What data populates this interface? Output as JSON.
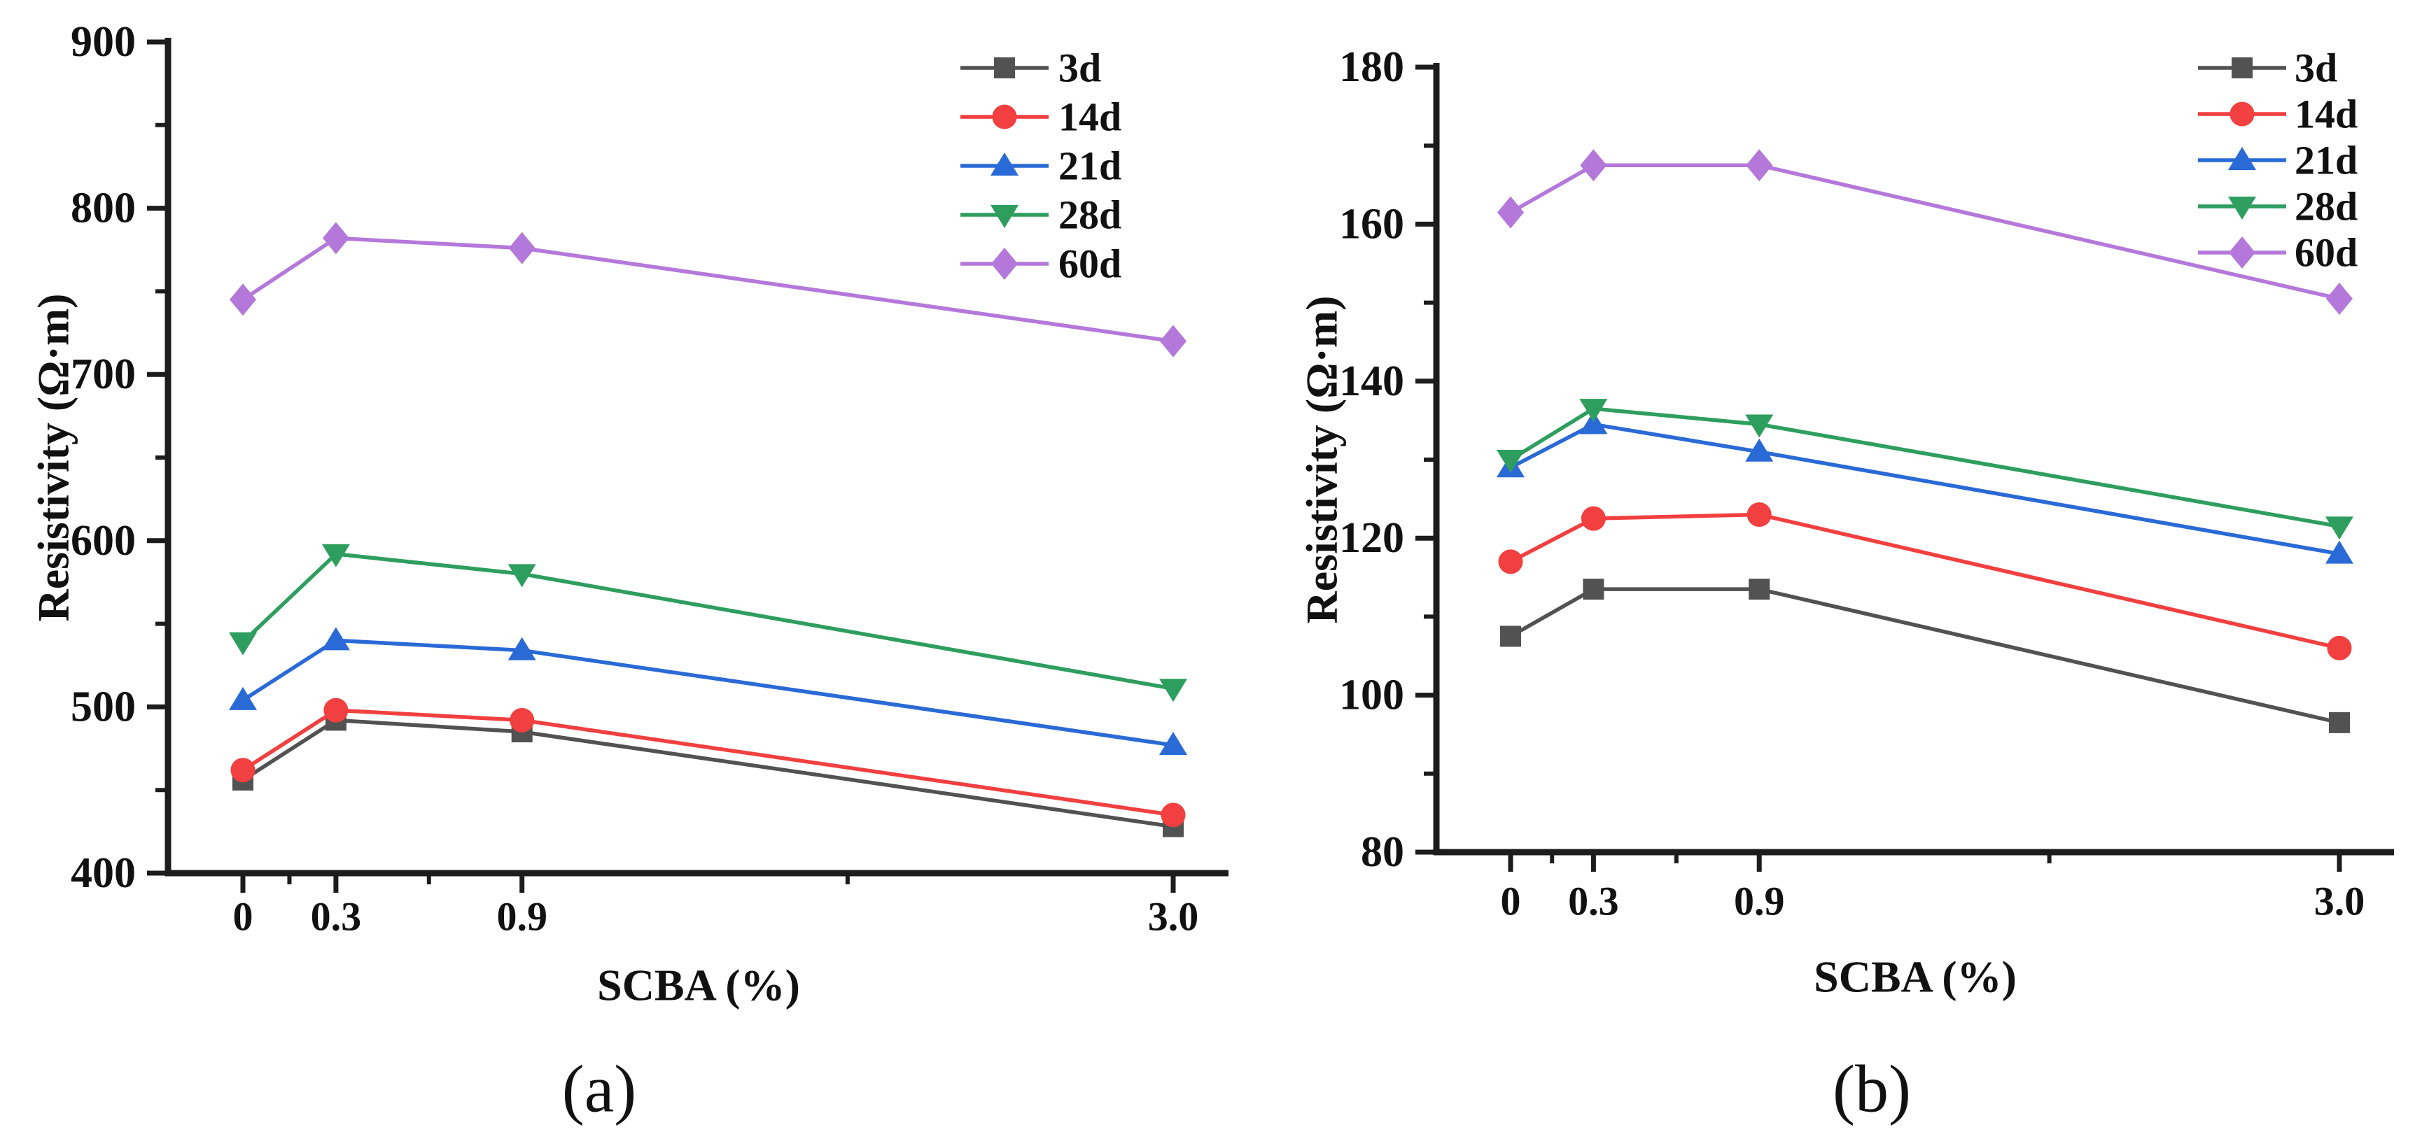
{
  "figure": {
    "background": "#FFFFFF",
    "text_color": "#111111",
    "axis_color": "#1c1c1c",
    "captions": {
      "a": "(a)",
      "b": "(b)"
    }
  },
  "chart_data": [
    {
      "id": "a",
      "type": "line",
      "title": "",
      "xlabel": "SCBA (%)",
      "ylabel": "Resistivity (Ω·m)",
      "x": [
        0,
        0.3,
        0.9,
        3.0
      ],
      "x_tick_labels": [
        "0",
        "0.3",
        "0.9",
        "3.0"
      ],
      "x_minor_ticks": [
        0.15,
        0.6,
        1.95
      ],
      "ylim": [
        400,
        900
      ],
      "y_major_ticks": [
        400,
        500,
        600,
        700,
        800,
        900
      ],
      "y_minor_ticks": [
        450,
        550,
        650,
        750,
        850
      ],
      "grid": false,
      "legend_position": "top-right",
      "legend_labels": [
        "3d",
        "14d",
        "21d",
        "28d",
        "60d"
      ],
      "series": [
        {
          "name": "3d",
          "marker": "square",
          "color": "#525252",
          "values": [
            456,
            492,
            485,
            428
          ]
        },
        {
          "name": "14d",
          "marker": "circle",
          "color": "#F23F3F",
          "values": [
            462,
            498,
            492,
            435
          ]
        },
        {
          "name": "21d",
          "marker": "triangle-up",
          "color": "#2A6AD6",
          "values": [
            504,
            540,
            534,
            477
          ]
        },
        {
          "name": "28d",
          "marker": "triangle-down",
          "color": "#2E9E5E",
          "values": [
            539,
            592,
            580,
            511
          ]
        },
        {
          "name": "60d",
          "marker": "diamond",
          "color": "#B478DA",
          "values": [
            745,
            782,
            776,
            720
          ]
        }
      ]
    },
    {
      "id": "b",
      "type": "line",
      "title": "",
      "xlabel": "SCBA (%)",
      "ylabel": "Resistivity (Ω·m)",
      "x": [
        0,
        0.3,
        0.9,
        3.0
      ],
      "x_tick_labels": [
        "0",
        "0.3",
        "0.9",
        "3.0"
      ],
      "x_minor_ticks": [
        0.15,
        0.6,
        1.95
      ],
      "ylim": [
        80,
        180
      ],
      "y_major_ticks": [
        80,
        100,
        120,
        140,
        160,
        180
      ],
      "y_minor_ticks": [
        90,
        110,
        130,
        150,
        170
      ],
      "grid": false,
      "legend_position": "top-right",
      "legend_labels": [
        "3d",
        "14d",
        "21d",
        "28d",
        "60d"
      ],
      "series": [
        {
          "name": "3d",
          "marker": "square",
          "color": "#525252",
          "values": [
            107.5,
            113.5,
            113.5,
            96.5
          ]
        },
        {
          "name": "14d",
          "marker": "circle",
          "color": "#F23F3F",
          "values": [
            117,
            122.5,
            123,
            106
          ]
        },
        {
          "name": "21d",
          "marker": "triangle-up",
          "color": "#2A6AD6",
          "values": [
            129,
            134.5,
            131,
            118
          ]
        },
        {
          "name": "28d",
          "marker": "triangle-down",
          "color": "#2E9E5E",
          "values": [
            130,
            136.5,
            134.5,
            121.5
          ]
        },
        {
          "name": "60d",
          "marker": "diamond",
          "color": "#B478DA",
          "values": [
            161.5,
            167.5,
            167.5,
            150.5
          ]
        }
      ]
    }
  ]
}
